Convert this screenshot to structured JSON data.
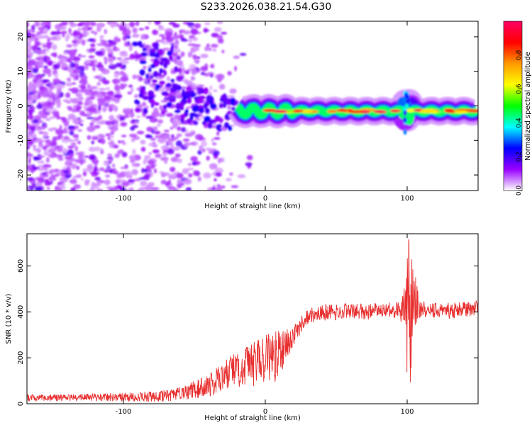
{
  "title": "S233.2026.038.21.54.G30",
  "chart_data": [
    {
      "type": "heatmap",
      "xlabel": "Height of straight line (km)",
      "ylabel": "Frequency (Hz)",
      "xlim": [
        -168,
        150
      ],
      "ylim": [
        -24.5,
        24.5
      ],
      "xticks": [
        -100,
        0,
        100
      ],
      "xtick_labels": [
        "-100",
        "0",
        "100"
      ],
      "yticks": [
        -20,
        -10,
        0,
        10,
        20
      ],
      "ytick_labels": [
        "-20",
        "-10",
        "0",
        "10",
        "20"
      ],
      "ridge_frequency_hz": -1.5,
      "noise_region_km": [
        -168,
        -20
      ],
      "ridge_region_km": [
        -20,
        150
      ],
      "colorbar": {
        "label": "Normalized spectral amplitude",
        "range": [
          0.0,
          1.0
        ],
        "ticks": [
          0.0,
          0.2,
          0.4,
          0.6,
          0.8
        ],
        "tick_labels": [
          "0.0",
          "0.2",
          "0.4",
          "0.6",
          "0.8"
        ],
        "colors": [
          "#ffffff",
          "#9900ff",
          "#0000ff",
          "#00ffff",
          "#00ff00",
          "#ffff00",
          "#ff9900",
          "#ff0000",
          "#ff0066"
        ]
      }
    },
    {
      "type": "line",
      "xlabel": "Height of straight line (km)",
      "ylabel": "SNR (10 * v/v)",
      "xlim": [
        -168,
        150
      ],
      "ylim": [
        0,
        740
      ],
      "xticks": [
        -100,
        0,
        100
      ],
      "xtick_labels": [
        "-100",
        "0",
        "100"
      ],
      "yticks": [
        0,
        200,
        400,
        600
      ],
      "ytick_labels": [
        "0",
        "200",
        "400",
        "600"
      ],
      "color": "#e83030",
      "series": [
        {
          "name": "SNR",
          "x": [
            -168,
            -150,
            -130,
            -110,
            -90,
            -70,
            -60,
            -50,
            -40,
            -35,
            -30,
            -25,
            -20,
            -15,
            -10,
            -5,
            0,
            5,
            10,
            15,
            20,
            25,
            30,
            40,
            50,
            60,
            70,
            80,
            90,
            95,
            98,
            100,
            102,
            104,
            106,
            108,
            110,
            115,
            120,
            130,
            140,
            150
          ],
          "values": [
            25,
            25,
            27,
            28,
            30,
            35,
            45,
            60,
            80,
            100,
            120,
            140,
            150,
            160,
            170,
            185,
            180,
            200,
            220,
            260,
            300,
            340,
            380,
            395,
            400,
            405,
            400,
            405,
            410,
            405,
            410,
            420,
            410,
            450,
            440,
            420,
            420,
            410,
            405,
            405,
            410,
            415
          ],
          "noise_amplitude": [
            15,
            15,
            15,
            18,
            20,
            25,
            30,
            40,
            50,
            60,
            60,
            70,
            80,
            90,
            100,
            110,
            120,
            120,
            100,
            70,
            50,
            40,
            35,
            35,
            35,
            35,
            35,
            35,
            35,
            40,
            120,
            330,
            350,
            200,
            120,
            60,
            45,
            35,
            35,
            35,
            35,
            35
          ]
        }
      ]
    }
  ]
}
